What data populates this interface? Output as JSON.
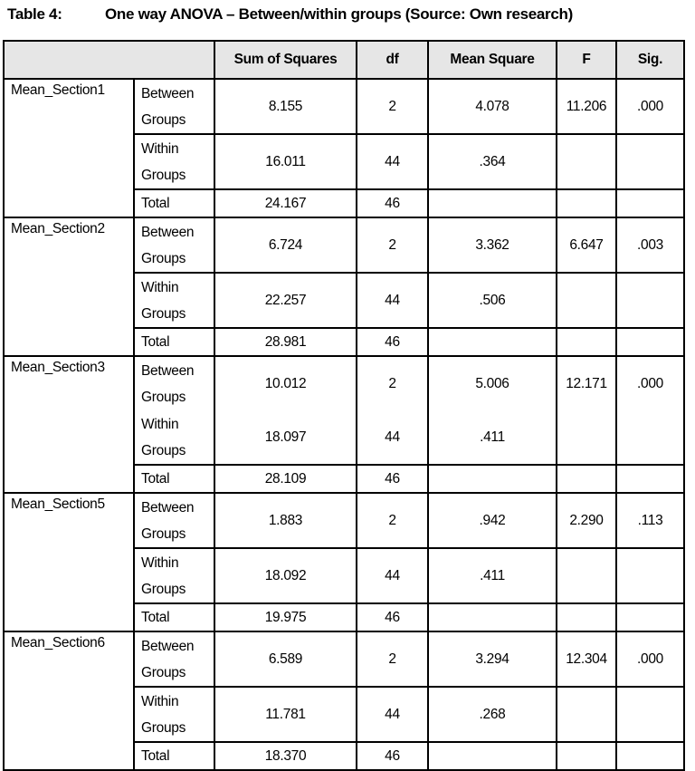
{
  "caption": {
    "label": "Table 4:",
    "title": "One way ANOVA – Between/within groups (Source: Own research)"
  },
  "headers": [
    "",
    "Sum of Squares",
    "df",
    "Mean Square",
    "F",
    "Sig."
  ],
  "sections": [
    {
      "name": "Mean_Section1",
      "split_between_within": true,
      "rows": [
        {
          "group": "Between Groups",
          "ss": "8.155",
          "df": "2",
          "ms": "4.078",
          "f": "11.206",
          "sig": ".000"
        },
        {
          "group": "Within Groups",
          "ss": "16.011",
          "df": "44",
          "ms": ".364",
          "f": "",
          "sig": ""
        },
        {
          "group": "Total",
          "ss": "24.167",
          "df": "46",
          "ms": "",
          "f": "",
          "sig": ""
        }
      ]
    },
    {
      "name": "Mean_Section2",
      "split_between_within": true,
      "rows": [
        {
          "group": "Between Groups",
          "ss": "6.724",
          "df": "2",
          "ms": "3.362",
          "f": "6.647",
          "sig": ".003"
        },
        {
          "group": "Within Groups",
          "ss": "22.257",
          "df": "44",
          "ms": ".506",
          "f": "",
          "sig": ""
        },
        {
          "group": "Total",
          "ss": "28.981",
          "df": "46",
          "ms": "",
          "f": "",
          "sig": ""
        }
      ]
    },
    {
      "name": "Mean_Section3",
      "split_between_within": false,
      "rows": [
        {
          "group": "Between Groups",
          "ss": "10.012",
          "df": "2",
          "ms": "5.006",
          "f": "12.171",
          "sig": ".000"
        },
        {
          "group": "Within Groups",
          "ss": "18.097",
          "df": "44",
          "ms": ".411",
          "f": "",
          "sig": ""
        },
        {
          "group": "Total",
          "ss": "28.109",
          "df": "46",
          "ms": "",
          "f": "",
          "sig": ""
        }
      ]
    },
    {
      "name": "Mean_Section5",
      "split_between_within": true,
      "rows": [
        {
          "group": "Between Groups",
          "ss": "1.883",
          "df": "2",
          "ms": ".942",
          "f": "2.290",
          "sig": ".113"
        },
        {
          "group": "Within Groups",
          "ss": "18.092",
          "df": "44",
          "ms": ".411",
          "f": "",
          "sig": ""
        },
        {
          "group": "Total",
          "ss": "19.975",
          "df": "46",
          "ms": "",
          "f": "",
          "sig": ""
        }
      ]
    },
    {
      "name": "Mean_Section6",
      "split_between_within": true,
      "rows": [
        {
          "group": "Between Groups",
          "ss": "6.589",
          "df": "2",
          "ms": "3.294",
          "f": "12.304",
          "sig": ".000"
        },
        {
          "group": "Within Groups",
          "ss": "11.781",
          "df": "44",
          "ms": ".268",
          "f": "",
          "sig": ""
        },
        {
          "group": "Total",
          "ss": "18.370",
          "df": "46",
          "ms": "",
          "f": "",
          "sig": ""
        }
      ]
    }
  ]
}
